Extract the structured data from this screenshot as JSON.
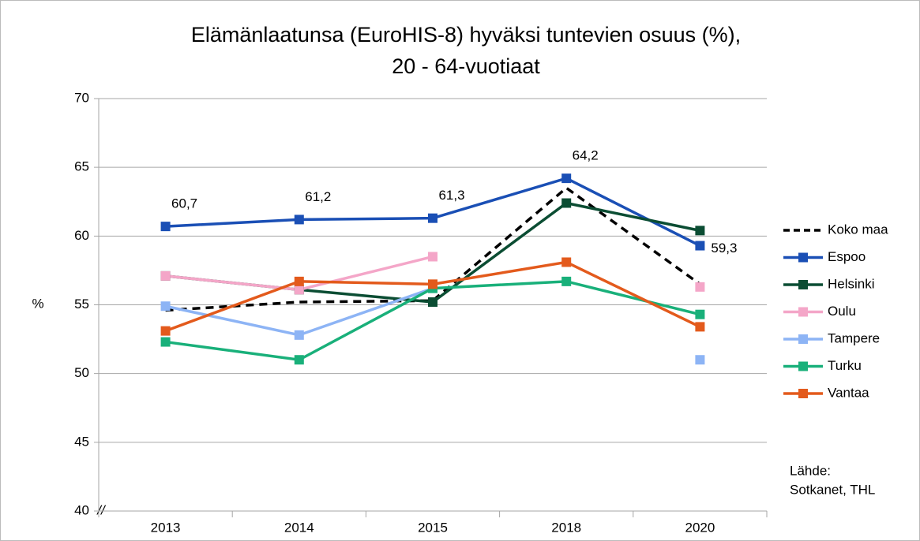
{
  "chart_data": {
    "type": "line",
    "title": [
      "Elämänlaatunsa (EuroHIS-8) hyväksi tuntevien osuus (%),",
      "20 - 64-vuotiaat"
    ],
    "y_label": "%",
    "axis_break": "//",
    "source": [
      "Lähde:",
      "Sotkanet, THL"
    ],
    "categories": [
      "2013",
      "2014",
      "2015",
      "2018",
      "2020"
    ],
    "ylim": [
      40,
      70
    ],
    "yticks": [
      40,
      45,
      50,
      55,
      60,
      65,
      70
    ],
    "grid": true,
    "legend": "right",
    "series": [
      {
        "name": "Koko maa",
        "color": "#000000",
        "dashed": true,
        "marker": false,
        "values": [
          54.6,
          55.2,
          55.3,
          63.5,
          56.5
        ]
      },
      {
        "name": "Espoo",
        "color": "#1a4fb5",
        "values": [
          60.7,
          61.2,
          61.3,
          64.2,
          59.3
        ],
        "value_labels": [
          "60,7",
          "61,2",
          "61,3",
          "64,2",
          "59,3"
        ]
      },
      {
        "name": "Helsinki",
        "color": "#0b4d33",
        "values": [
          57.1,
          56.1,
          55.2,
          62.4,
          60.4
        ]
      },
      {
        "name": "Oulu",
        "color": "#f4a6c8",
        "values": [
          57.1,
          56.1,
          58.5,
          null,
          56.3
        ]
      },
      {
        "name": "Tampere",
        "color": "#8db4f5",
        "values": [
          54.9,
          52.8,
          56.2,
          null,
          51.0
        ]
      },
      {
        "name": "Turku",
        "color": "#19b07a",
        "values": [
          52.3,
          51.0,
          56.2,
          56.7,
          54.3
        ]
      },
      {
        "name": "Vantaa",
        "color": "#e35a1c",
        "values": [
          53.1,
          56.7,
          56.5,
          58.1,
          53.4
        ]
      }
    ]
  }
}
